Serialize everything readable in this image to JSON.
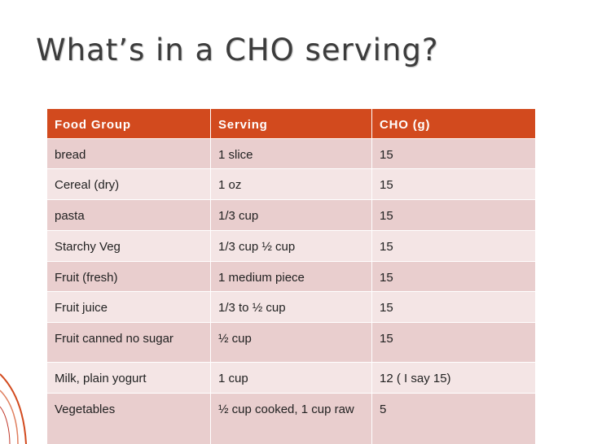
{
  "title": "What’s in a CHO serving?",
  "table": {
    "header": [
      "Food Group",
      "Serving",
      "CHO (g)"
    ],
    "rows": [
      [
        "bread",
        "1 slice",
        "15"
      ],
      [
        "Cereal (dry)",
        "1 oz",
        "15"
      ],
      [
        "pasta",
        "1/3 cup",
        "15"
      ],
      [
        "Starchy Veg",
        "1/3 cup ½ cup",
        "15"
      ],
      [
        "Fruit (fresh)",
        "1 medium piece",
        "15"
      ],
      [
        "Fruit juice",
        "1/3 to ½ cup",
        "15"
      ],
      [
        "Fruit canned no sugar",
        "½ cup",
        "15"
      ],
      [
        "Milk, plain yogurt",
        "1 cup",
        "12 ( I say 15)"
      ],
      [
        "Vegetables",
        "½ cup cooked, 1 cup raw",
        "5"
      ]
    ]
  }
}
